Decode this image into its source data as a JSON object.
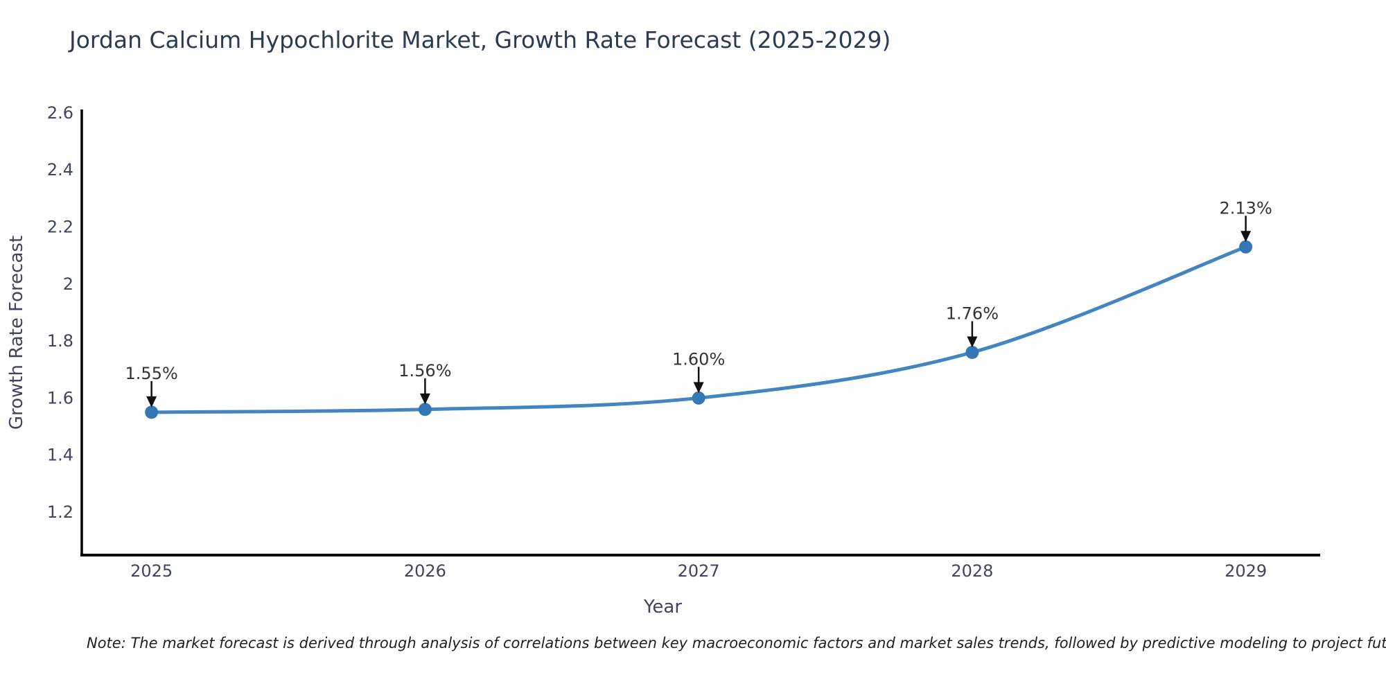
{
  "title": {
    "text": "Jordan Calcium Hypochlorite Market, Growth Rate Forecast (2025-2029)",
    "color": "#2b3a55"
  },
  "note": {
    "text": "Note: The market forecast is derived through analysis of correlations between key macroeconomic factors and market sales trends, followed by predictive modeling to project future sales"
  },
  "chart_data": {
    "type": "line",
    "title": "Jordan Calcium Hypochlorite Market, Growth Rate Forecast (2025-2029)",
    "xlabel": "Year",
    "ylabel": "Growth Rate Forecast",
    "x": [
      2025,
      2026,
      2027,
      2028,
      2029
    ],
    "x_tick_labels": [
      "2025",
      "2026",
      "2027",
      "2028",
      "2029"
    ],
    "series": [
      {
        "name": "Growth Rate Forecast",
        "values": [
          1.55,
          1.56,
          1.6,
          1.76,
          2.13
        ]
      }
    ],
    "point_labels": [
      "1.55%",
      "1.56%",
      "1.60%",
      "1.76%",
      "2.13%"
    ],
    "y_ticks": [
      1.2,
      1.4,
      1.6,
      1.8,
      2,
      2.2,
      2.4,
      2.6
    ],
    "y_tick_labels": [
      "1.2",
      "1.4",
      "1.6",
      "1.8",
      "2",
      "2.2",
      "2.4",
      "2.6"
    ],
    "xlim": [
      2024.745,
      2029.272
    ],
    "ylim": [
      1.049,
      2.612
    ],
    "grid": false,
    "legend": "none",
    "colors": {
      "line": "#4385c1",
      "marker": "#3477b5",
      "axis": "#000000",
      "tick_text": "#3f455e",
      "annotation_text": "#333333",
      "arrow": "#111111"
    }
  }
}
